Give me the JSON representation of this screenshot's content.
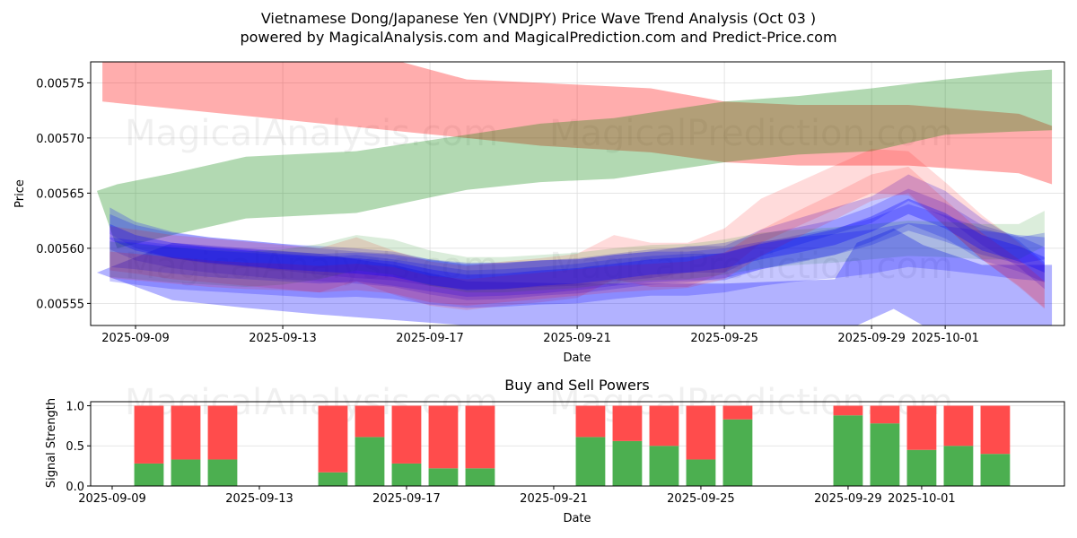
{
  "title_line1": "Vietnamese Dong/Japanese Yen (VNDJPY) Price Wave Trend Analysis (Oct 03 )",
  "title_line2": "powered by MagicalAnalysis.com and MagicalPrediction.com and Predict-Price.com",
  "watermarks": [
    "MagicalAnalysis.com",
    "MagicalPrediction.com"
  ],
  "colors": {
    "red_band": "#ff0000",
    "green_band": "#008000",
    "blue_band": "#0000ff",
    "buy": "#4caf50",
    "sell": "#ff4c4c",
    "grid": "#dddddd"
  },
  "chart_data": [
    {
      "type": "area",
      "title": "",
      "xlabel": "Date",
      "ylabel": "Price",
      "ylim": [
        0.00553,
        0.005769
      ],
      "xlim_days_from_2025_09_09": [
        -1.22,
        25.24
      ],
      "grid": true,
      "x_ticks": [
        {
          "label": "2025-09-09",
          "day": 0
        },
        {
          "label": "2025-09-13",
          "day": 4
        },
        {
          "label": "2025-09-17",
          "day": 8
        },
        {
          "label": "2025-09-21",
          "day": 12
        },
        {
          "label": "2025-09-25",
          "day": 16
        },
        {
          "label": "2025-09-29",
          "day": 20
        },
        {
          "label": "2025-10-01",
          "day": 22
        }
      ],
      "y_ticks": [
        {
          "label": "0.00555",
          "value": 0.00555
        },
        {
          "label": "0.00560",
          "value": 0.0056
        },
        {
          "label": "0.00565",
          "value": 0.00565
        },
        {
          "label": "0.00570",
          "value": 0.0057
        },
        {
          "label": "0.00575",
          "value": 0.00575
        }
      ],
      "bands": [
        {
          "name": "red-upper-band",
          "color": "red",
          "opacity": 0.32,
          "x": [
            -0.9,
            0,
            3,
            6,
            9,
            11,
            14,
            16,
            18,
            21,
            24,
            24.9
          ],
          "upper": [
            0.00578,
            0.00578,
            0.00578,
            0.00578,
            0.005753,
            0.00575,
            0.005745,
            0.005733,
            0.00573,
            0.00573,
            0.005722,
            0.005711
          ],
          "lower": [
            0.005733,
            0.00573,
            0.00572,
            0.00571,
            0.0057,
            0.005693,
            0.005687,
            0.005678,
            0.005675,
            0.005675,
            0.005668,
            0.005658
          ]
        },
        {
          "name": "green-rising-band",
          "color": "green",
          "opacity": 0.3,
          "x": [
            -1.05,
            -0.5,
            1,
            3,
            6,
            9,
            11,
            13,
            16,
            18,
            20,
            22,
            24,
            24.9
          ],
          "upper": [
            0.005652,
            0.005658,
            0.005668,
            0.005683,
            0.005688,
            0.005703,
            0.005713,
            0.005718,
            0.005733,
            0.005738,
            0.005745,
            0.005753,
            0.00576,
            0.005762
          ],
          "lower": [
            0.005652,
            0.0056,
            0.005612,
            0.005627,
            0.005632,
            0.005653,
            0.00566,
            0.005663,
            0.005678,
            0.005685,
            0.005688,
            0.005703,
            0.005706,
            0.005707
          ]
        },
        {
          "name": "blue-lower-band",
          "color": "blue",
          "opacity": 0.3,
          "x": [
            -1.05,
            1,
            3,
            5,
            7,
            9,
            12,
            16,
            19,
            19.6,
            20.6,
            21.4,
            23,
            24.9
          ],
          "upper": [
            0.005578,
            0.005605,
            0.0056,
            0.005595,
            0.005585,
            0.00557,
            0.005568,
            0.005568,
            0.005572,
            0.005605,
            0.005618,
            0.005603,
            0.005585,
            0.005585
          ],
          "lower": [
            0.005578,
            0.005553,
            0.005546,
            0.00554,
            0.005535,
            0.00553,
            0.00553,
            0.00553,
            0.00553,
            0.00553,
            0.005545,
            0.00553,
            0.00553,
            0.00553
          ]
        }
      ],
      "wave_lines": {
        "x": [
          -0.7,
          0,
          1,
          2,
          3,
          4,
          5,
          6,
          7,
          8,
          9,
          10,
          11,
          12,
          13,
          14,
          15,
          16,
          17,
          18,
          19,
          20,
          21,
          22,
          23,
          24,
          24.7
        ],
        "series": [
          {
            "color": "blue",
            "y": [
              0.005625,
              0.005612,
              0.005603,
              0.005598,
              0.005595,
              0.005592,
              0.005588,
              0.005585,
              0.005583,
              0.005578,
              0.005575,
              0.005575,
              0.005577,
              0.005578,
              0.005582,
              0.005585,
              0.00559,
              0.00559,
              0.005605,
              0.005615,
              0.005625,
              0.005635,
              0.005655,
              0.00564,
              0.005615,
              0.005595,
              0.005575
            ]
          },
          {
            "color": "blue",
            "y": [
              0.005615,
              0.005605,
              0.005598,
              0.005594,
              0.005591,
              0.005588,
              0.005586,
              0.005584,
              0.005581,
              0.005574,
              0.005569,
              0.00557,
              0.005573,
              0.005575,
              0.005579,
              0.005583,
              0.005585,
              0.005589,
              0.005597,
              0.005603,
              0.00561,
              0.005622,
              0.005638,
              0.005625,
              0.005605,
              0.005595,
              0.005585
            ]
          },
          {
            "color": "red",
            "y": [
              0.0056,
              0.005597,
              0.005592,
              0.005589,
              0.005586,
              0.005583,
              0.00558,
              0.00559,
              0.005578,
              0.005568,
              0.005564,
              0.005568,
              0.005571,
              0.005575,
              0.005592,
              0.005585,
              0.005585,
              0.005598,
              0.005625,
              0.00564,
              0.005655,
              0.00567,
              0.005668,
              0.00564,
              0.00561,
              0.005585,
              0.005565
            ]
          },
          {
            "color": "blue",
            "y": [
              0.005595,
              0.005593,
              0.005589,
              0.005586,
              0.005584,
              0.005582,
              0.00558,
              0.005582,
              0.005578,
              0.005573,
              0.005568,
              0.005569,
              0.005571,
              0.005574,
              0.005578,
              0.005581,
              0.005583,
              0.005583,
              0.005593,
              0.0056,
              0.005606,
              0.005615,
              0.005628,
              0.005618,
              0.005606,
              0.005598,
              0.005602
            ]
          },
          {
            "color": "green",
            "y": [
              0.00559,
              0.005588,
              0.005585,
              0.005583,
              0.005581,
              0.005583,
              0.005588,
              0.005596,
              0.005592,
              0.005582,
              0.005576,
              0.005576,
              0.005578,
              0.00558,
              0.005584,
              0.005587,
              0.005588,
              0.005592,
              0.005598,
              0.005601,
              0.005603,
              0.005606,
              0.005609,
              0.005608,
              0.005606,
              0.005606,
              0.005618
            ]
          },
          {
            "color": "blue",
            "y": [
              0.00559,
              0.005587,
              0.005583,
              0.005581,
              0.005579,
              0.005577,
              0.005575,
              0.005576,
              0.005574,
              0.005569,
              0.005566,
              0.005567,
              0.005569,
              0.00557,
              0.005574,
              0.005577,
              0.005577,
              0.00558,
              0.005586,
              0.00559,
              0.005593,
              0.005597,
              0.005603,
              0.0056,
              0.005596,
              0.005592,
              0.00559
            ]
          },
          {
            "color": "red",
            "y": [
              0.005585,
              0.005583,
              0.00558,
              0.005577,
              0.005575,
              0.005574,
              0.005572,
              0.005574,
              0.005571,
              0.005563,
              0.00556,
              0.005563,
              0.005566,
              0.005569,
              0.005572,
              0.005574,
              0.005576,
              0.005584,
              0.005605,
              0.005622,
              0.005638,
              0.005655,
              0.005662,
              0.005632,
              0.005602,
              0.005578,
              0.005558
            ]
          }
        ]
      },
      "legend": null
    },
    {
      "type": "bar",
      "title": "Buy and Sell Powers",
      "xlabel": "Date",
      "ylabel": "Signal Strength",
      "ylim": [
        0,
        1.05
      ],
      "xlim_days_from_2025_09_09": [
        -0.585,
        25.88
      ],
      "grid": true,
      "x_ticks": [
        {
          "label": "2025-09-09",
          "day": 0
        },
        {
          "label": "2025-09-13",
          "day": 4
        },
        {
          "label": "2025-09-17",
          "day": 8
        },
        {
          "label": "2025-09-21",
          "day": 12
        },
        {
          "label": "2025-09-25",
          "day": 16
        },
        {
          "label": "2025-09-29",
          "day": 20
        },
        {
          "label": "2025-10-01",
          "day": 22
        }
      ],
      "y_ticks": [
        {
          "label": "0.0",
          "value": 0.0
        },
        {
          "label": "0.5",
          "value": 0.5
        },
        {
          "label": "1.0",
          "value": 1.0
        }
      ],
      "categories": [
        "2025-09-10",
        "2025-09-11",
        "2025-09-12",
        "2025-09-15",
        "2025-09-16",
        "2025-09-17",
        "2025-09-18",
        "2025-09-19",
        "2025-09-22",
        "2025-09-23",
        "2025-09-24",
        "2025-09-25",
        "2025-09-26",
        "2025-09-29",
        "2025-09-30",
        "2025-10-01",
        "2025-10-02",
        "2025-10-03"
      ],
      "days": [
        1,
        2,
        3,
        6,
        7,
        8,
        9,
        10,
        13,
        14,
        15,
        16,
        17,
        20,
        21,
        22,
        23,
        24
      ],
      "series": [
        {
          "name": "Buy",
          "color": "green",
          "values": [
            0.28,
            0.33,
            0.33,
            0.17,
            0.61,
            0.28,
            0.22,
            0.22,
            0.61,
            0.56,
            0.5,
            0.33,
            0.83,
            0.88,
            0.78,
            0.45,
            0.5,
            0.4
          ]
        },
        {
          "name": "Sell",
          "color": "red",
          "values": [
            0.72,
            0.67,
            0.67,
            0.83,
            0.39,
            0.72,
            0.78,
            0.78,
            0.39,
            0.44,
            0.5,
            0.67,
            0.17,
            0.12,
            0.22,
            0.55,
            0.5,
            0.6
          ]
        }
      ]
    }
  ]
}
